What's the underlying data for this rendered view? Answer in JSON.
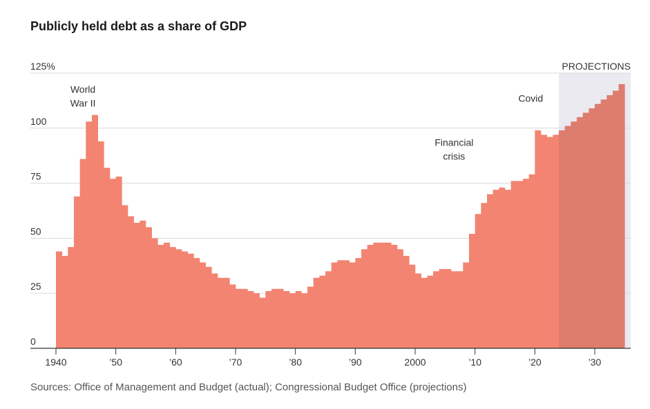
{
  "chart_data": {
    "type": "bar",
    "title": "Publicly held debt as a share of GDP",
    "source": "Sources: Office of Management and Budget (actual); Congressional Budget Office (projections)",
    "xlabel": "",
    "ylabel": "",
    "ylim": [
      0,
      125
    ],
    "xlim": [
      1940,
      2035
    ],
    "grid": true,
    "y_ticks": [
      {
        "value": 125,
        "label": "125%"
      },
      {
        "value": 100,
        "label": "100"
      },
      {
        "value": 75,
        "label": "75"
      },
      {
        "value": 50,
        "label": "50"
      },
      {
        "value": 25,
        "label": "25"
      },
      {
        "value": 0,
        "label": "0"
      }
    ],
    "x_ticks": [
      {
        "value": 1940,
        "label": "1940"
      },
      {
        "value": 1950,
        "label": "’50"
      },
      {
        "value": 1960,
        "label": "’60"
      },
      {
        "value": 1970,
        "label": "’70"
      },
      {
        "value": 1980,
        "label": "’80"
      },
      {
        "value": 1990,
        "label": "’90"
      },
      {
        "value": 2000,
        "label": "2000"
      },
      {
        "value": 2010,
        "label": "’10"
      },
      {
        "value": 2020,
        "label": "’20"
      },
      {
        "value": 2030,
        "label": "’30"
      }
    ],
    "years": [
      1940,
      1941,
      1942,
      1943,
      1944,
      1945,
      1946,
      1947,
      1948,
      1949,
      1950,
      1951,
      1952,
      1953,
      1954,
      1955,
      1956,
      1957,
      1958,
      1959,
      1960,
      1961,
      1962,
      1963,
      1964,
      1965,
      1966,
      1967,
      1968,
      1969,
      1970,
      1971,
      1972,
      1973,
      1974,
      1975,
      1976,
      1977,
      1978,
      1979,
      1980,
      1981,
      1982,
      1983,
      1984,
      1985,
      1986,
      1987,
      1988,
      1989,
      1990,
      1991,
      1992,
      1993,
      1994,
      1995,
      1996,
      1997,
      1998,
      1999,
      2000,
      2001,
      2002,
      2003,
      2004,
      2005,
      2006,
      2007,
      2008,
      2009,
      2010,
      2011,
      2012,
      2013,
      2014,
      2015,
      2016,
      2017,
      2018,
      2019,
      2020,
      2021,
      2022,
      2023,
      2024,
      2025,
      2026,
      2027,
      2028,
      2029,
      2030,
      2031,
      2032,
      2033,
      2034
    ],
    "values": [
      44,
      42,
      46,
      69,
      86,
      103,
      106,
      94,
      82,
      77,
      78,
      65,
      60,
      57,
      58,
      55,
      50,
      47,
      48,
      46,
      45,
      44,
      43,
      41,
      39,
      37,
      34,
      32,
      32,
      29,
      27,
      27,
      26,
      25,
      23,
      26,
      27,
      27,
      26,
      25,
      26,
      25,
      28,
      32,
      33,
      35,
      39,
      40,
      40,
      39,
      41,
      45,
      47,
      48,
      48,
      48,
      47,
      45,
      42,
      38,
      34,
      32,
      33,
      35,
      36,
      36,
      35,
      35,
      39,
      52,
      61,
      66,
      70,
      72,
      73,
      72,
      76,
      76,
      77,
      79,
      99,
      97,
      96,
      97,
      99,
      101,
      103,
      105,
      107,
      109,
      111,
      113,
      115,
      117,
      120
    ]
  },
  "projection": {
    "label": "PROJECTIONS",
    "start_year": 2024
  },
  "annotations": [
    {
      "id": "ww2",
      "lines": [
        "World",
        "War II"
      ],
      "year": 1944.5,
      "value": 116
    },
    {
      "id": "financial-crisis",
      "lines": [
        "Financial",
        "crisis"
      ],
      "year": 2006.5,
      "value": 92
    },
    {
      "id": "covid",
      "lines": [
        "Covid"
      ],
      "year": 2019.3,
      "value": 112
    }
  ],
  "colors": {
    "bar": "#f28471",
    "bar_projection": "#de7c6e",
    "projection_band": "#eaeaf0",
    "grid": "#d9d9d9",
    "axis": "#333333",
    "tick_text": "#333333"
  }
}
